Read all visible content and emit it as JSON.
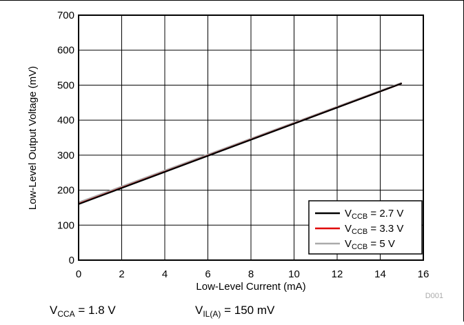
{
  "chart_data": {
    "type": "line",
    "xlabel": "Low-Level Current (mA)",
    "ylabel": "Low-Level Output Voltage (mV)",
    "xlim": [
      0,
      16
    ],
    "ylim": [
      0,
      700
    ],
    "xticks": [
      0,
      2,
      4,
      6,
      8,
      10,
      12,
      14,
      16
    ],
    "yticks": [
      0,
      100,
      200,
      300,
      400,
      500,
      600,
      700
    ],
    "grid": true,
    "legend_position": "bottom-right",
    "series": [
      {
        "name_main": "V",
        "name_sub": "CCB",
        "name_rest": " = 2.7 V",
        "color": "#000000",
        "x": [
          0,
          15
        ],
        "y": [
          160,
          505
        ]
      },
      {
        "name_main": "V",
        "name_sub": "CCB",
        "name_rest": " = 3.3 V",
        "color": "#e00000",
        "x": [
          0,
          15
        ],
        "y": [
          161,
          505
        ]
      },
      {
        "name_main": "V",
        "name_sub": "CCB",
        "name_rest": " = 5 V",
        "color": "#aaaaaa",
        "x": [
          0,
          15
        ],
        "y": [
          165,
          507
        ]
      }
    ],
    "tag": "D001",
    "conditions": [
      {
        "main": "V",
        "sub": "CCA",
        "rest": " = 1.8 V"
      },
      {
        "main": "V",
        "sub": "IL(A)",
        "rest": " = 150 mV"
      }
    ]
  }
}
